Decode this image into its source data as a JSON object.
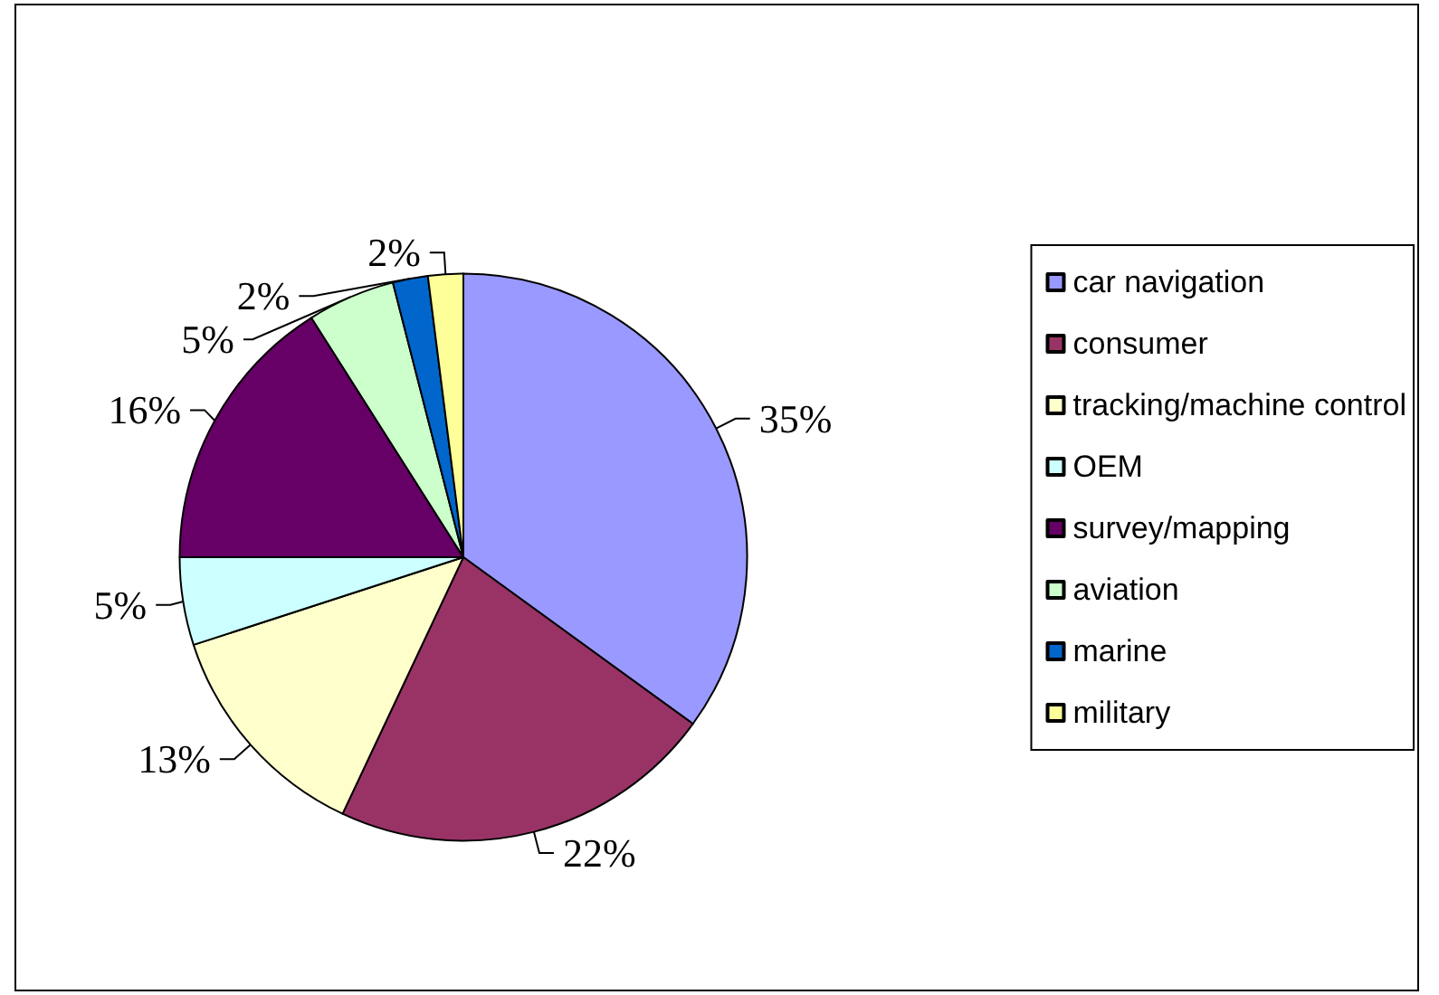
{
  "chart_data": {
    "type": "pie",
    "categories": [
      "car navigation",
      "consumer",
      "tracking/machine control",
      "OEM",
      "survey/mapping",
      "aviation",
      "marine",
      "military"
    ],
    "values": [
      35,
      22,
      13,
      5,
      16,
      5,
      2,
      2
    ],
    "colors": [
      "#9999ff",
      "#993366",
      "#ffffcc",
      "#ccffff",
      "#660066",
      "#ccffcc",
      "#0066cc",
      "#ffff99"
    ],
    "value_labels": [
      "35%",
      "22%",
      "13%",
      "5%",
      "16%",
      "5%",
      "2%",
      "2%"
    ],
    "legend": "right"
  }
}
